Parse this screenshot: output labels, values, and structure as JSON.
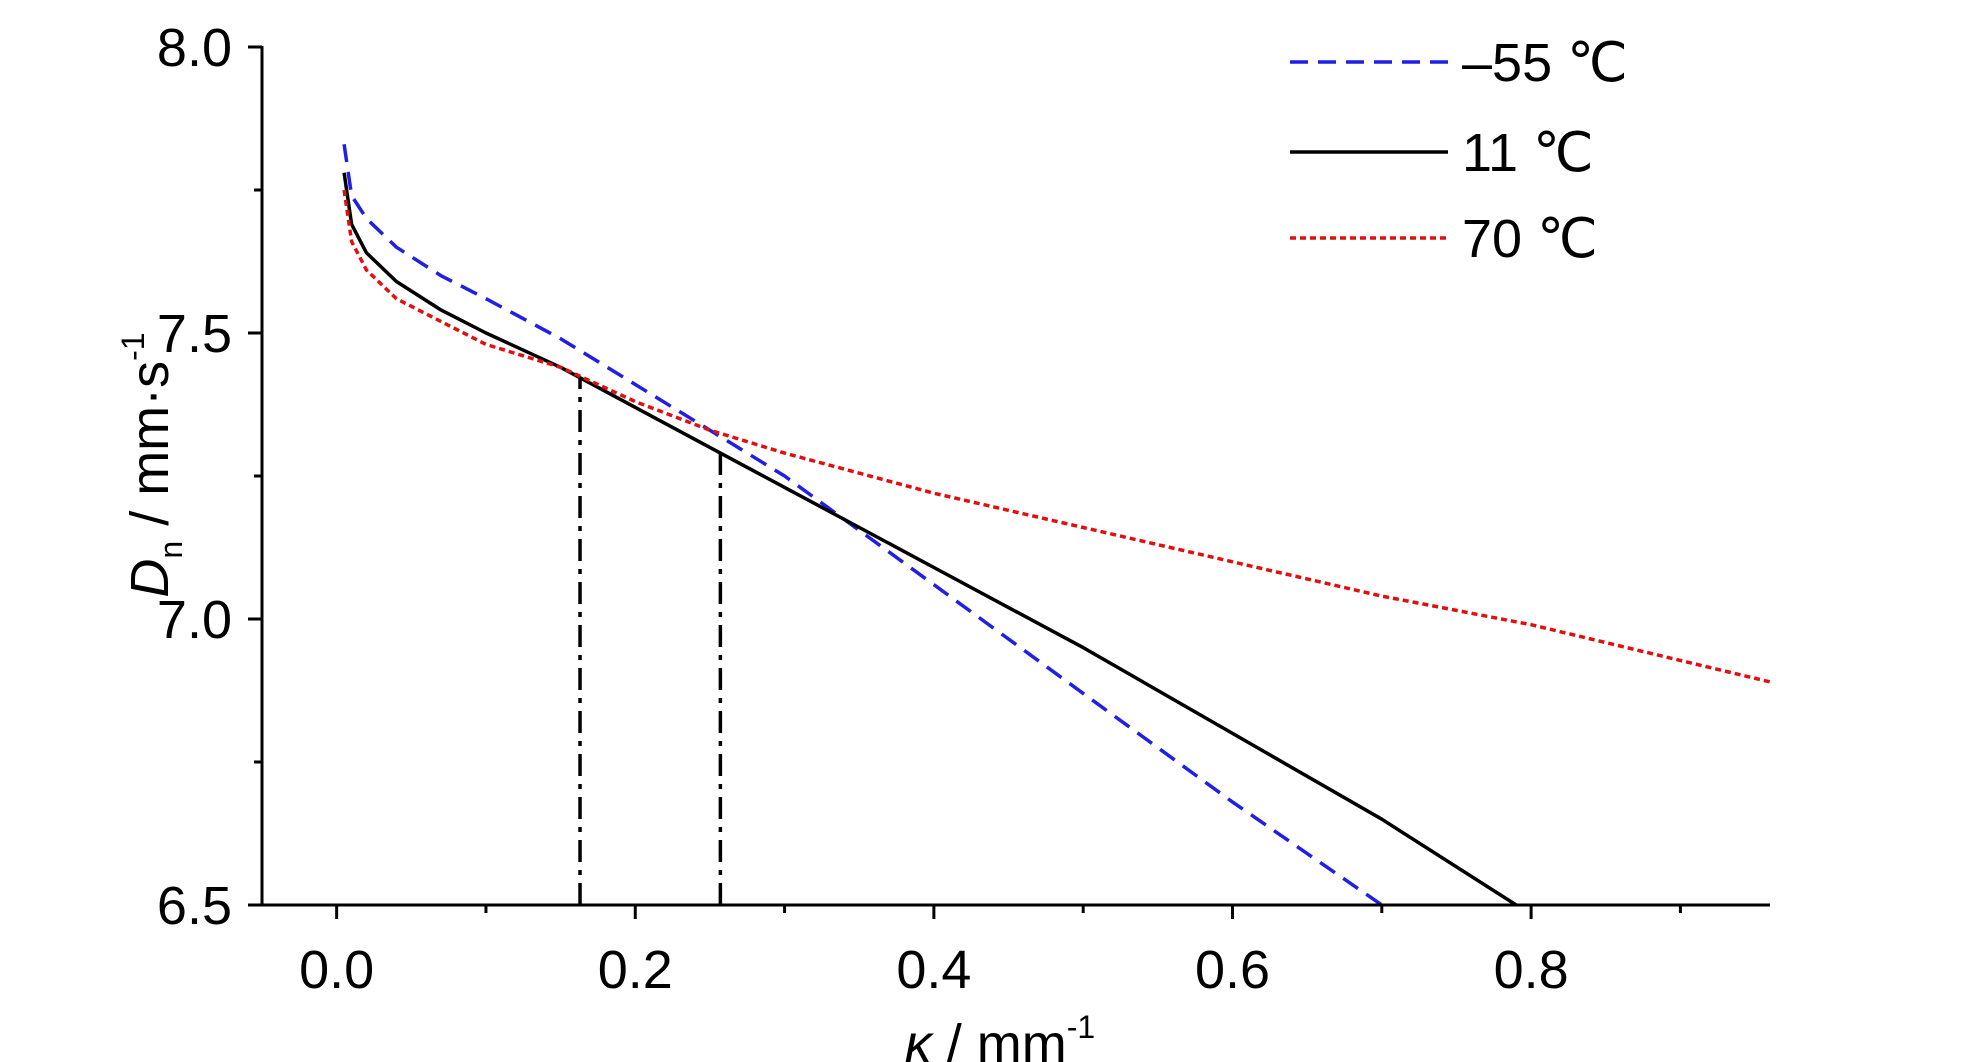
{
  "chart_data": {
    "type": "line",
    "xlim": [
      -0.05,
      0.96
    ],
    "ylim": [
      6.5,
      8.0
    ],
    "x_ticks": [
      {
        "value": 0.0,
        "label": "0.0"
      },
      {
        "value": 0.2,
        "label": "0.2"
      },
      {
        "value": 0.4,
        "label": "0.4"
      },
      {
        "value": 0.6,
        "label": "0.6"
      },
      {
        "value": 0.8,
        "label": "0.8"
      }
    ],
    "x_minor_ticks": [
      0.1,
      0.3,
      0.5,
      0.7,
      0.9
    ],
    "y_ticks": [
      {
        "value": 6.5,
        "label": "6.5"
      },
      {
        "value": 7.0,
        "label": "7.0"
      },
      {
        "value": 7.5,
        "label": "7.5"
      },
      {
        "value": 8.0,
        "label": "8.0"
      }
    ],
    "y_minor_ticks": [
      6.75,
      7.25,
      7.75
    ],
    "xlabel": {
      "symbol": "κ",
      "unit": " / mm",
      "superscript": "-1"
    },
    "ylabel": {
      "symbol": "D",
      "subscript": "n",
      "unit": " / mm·s",
      "superscript": "-1"
    },
    "legend_position": "top-right",
    "grid": false,
    "series": [
      {
        "name": "–55 ℃",
        "color": "#1f1fe6",
        "style": "dashed",
        "x": [
          0.005,
          0.01,
          0.02,
          0.04,
          0.07,
          0.1,
          0.15,
          0.2,
          0.25,
          0.3,
          0.4,
          0.5,
          0.6,
          0.7
        ],
        "y": [
          7.83,
          7.74,
          7.7,
          7.65,
          7.6,
          7.56,
          7.49,
          7.41,
          7.33,
          7.25,
          7.06,
          6.87,
          6.68,
          6.5
        ]
      },
      {
        "name": "11 ℃",
        "color": "#000000",
        "style": "solid",
        "x": [
          0.005,
          0.01,
          0.02,
          0.04,
          0.07,
          0.1,
          0.15,
          0.2,
          0.25,
          0.3,
          0.4,
          0.5,
          0.6,
          0.7,
          0.79
        ],
        "y": [
          7.78,
          7.69,
          7.64,
          7.59,
          7.54,
          7.5,
          7.44,
          7.37,
          7.3,
          7.23,
          7.09,
          6.95,
          6.8,
          6.65,
          6.5
        ]
      },
      {
        "name": "70 ℃",
        "color": "#e01010",
        "style": "dotted",
        "x": [
          0.005,
          0.01,
          0.02,
          0.04,
          0.07,
          0.1,
          0.15,
          0.2,
          0.25,
          0.3,
          0.4,
          0.5,
          0.6,
          0.7,
          0.8,
          0.96
        ],
        "y": [
          7.75,
          7.66,
          7.61,
          7.56,
          7.52,
          7.48,
          7.44,
          7.38,
          7.33,
          7.29,
          7.22,
          7.16,
          7.1,
          7.04,
          6.99,
          6.89
        ]
      }
    ],
    "annotations": [
      {
        "type": "vline",
        "style": "dash-dot",
        "color": "#000000",
        "x": 0.163,
        "y_from": 6.5,
        "y_to": 7.42
      },
      {
        "type": "vline",
        "style": "dash-dot",
        "color": "#000000",
        "x": 0.257,
        "y_from": 6.5,
        "y_to": 7.29
      }
    ]
  }
}
